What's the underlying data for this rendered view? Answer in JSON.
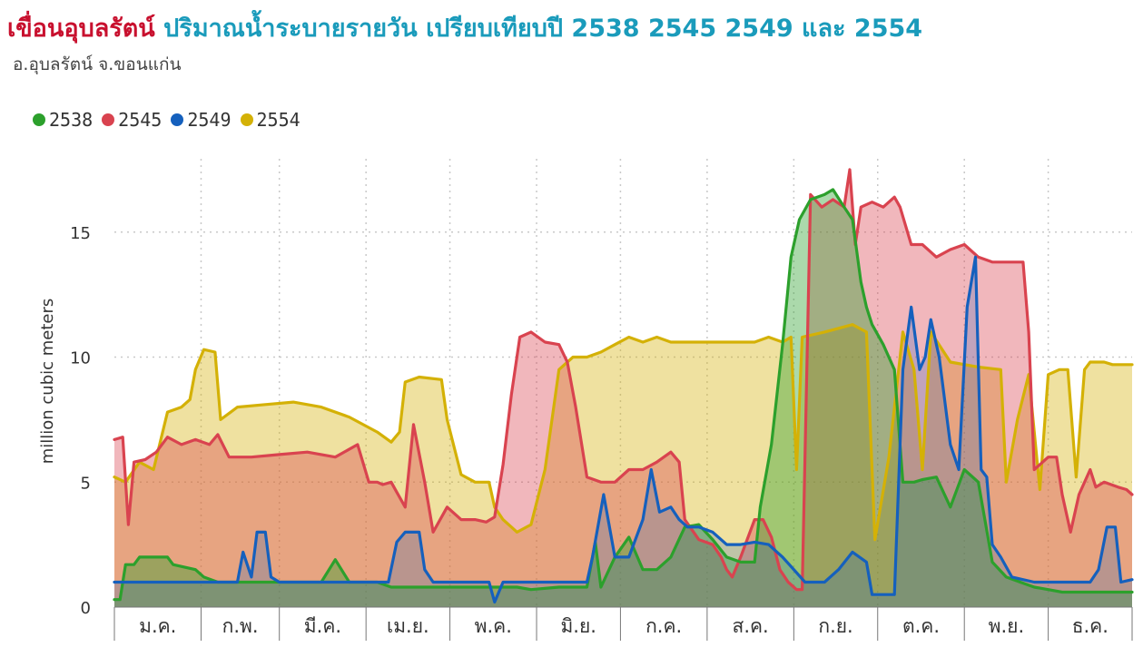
{
  "header": {
    "title_dam": "เขื่อนอุบลรัตน์",
    "title_rest": "ปริมาณน้ำระบายรายวัน เปรียบเทียบปี 2538 2545 2549 และ 2554",
    "subtitle": "อ.อุบลรัตน์ จ.ขอนแก่น"
  },
  "colors": {
    "2538": "#2ca02c",
    "2545": "#d9434f",
    "2549": "#1560bd",
    "2554": "#d4b106"
  },
  "chart_data": {
    "type": "area",
    "title": "ปริมาณน้ำระบายรายวัน เปรียบเทียบปี 2538 2545 2549 และ 2554",
    "xlabel": "",
    "ylabel": "million cubic meters",
    "ylim": [
      0,
      18
    ],
    "yticks": [
      "0",
      "5",
      "10",
      "15"
    ],
    "grid": true,
    "legend_position": "top-left",
    "months": [
      "ม.ค.",
      "ก.พ.",
      "มี.ค.",
      "เม.ย.",
      "พ.ค.",
      "มิ.ย.",
      "ก.ค.",
      "ส.ค.",
      "ก.ย.",
      "ต.ค.",
      "พ.ย.",
      "ธ.ค."
    ],
    "x_unit": "day of year",
    "series": [
      {
        "name": "2554",
        "points": [
          [
            1,
            5.2
          ],
          [
            5,
            5.0
          ],
          [
            10,
            5.8
          ],
          [
            15,
            5.5
          ],
          [
            20,
            7.8
          ],
          [
            25,
            8.0
          ],
          [
            28,
            8.3
          ],
          [
            30,
            9.5
          ],
          [
            33,
            10.3
          ],
          [
            37,
            10.2
          ],
          [
            39,
            7.5
          ],
          [
            45,
            8.0
          ],
          [
            55,
            8.1
          ],
          [
            65,
            8.2
          ],
          [
            75,
            8.0
          ],
          [
            85,
            7.6
          ],
          [
            90,
            7.3
          ],
          [
            95,
            7.0
          ],
          [
            100,
            6.6
          ],
          [
            103,
            7.0
          ],
          [
            105,
            9.0
          ],
          [
            110,
            9.2
          ],
          [
            118,
            9.1
          ],
          [
            120,
            7.5
          ],
          [
            125,
            5.3
          ],
          [
            130,
            5.0
          ],
          [
            135,
            5.0
          ],
          [
            137,
            4.0
          ],
          [
            140,
            3.5
          ],
          [
            143,
            3.2
          ],
          [
            145,
            3.0
          ],
          [
            150,
            3.3
          ],
          [
            155,
            5.5
          ],
          [
            160,
            9.5
          ],
          [
            165,
            10.0
          ],
          [
            170,
            10.0
          ],
          [
            175,
            10.2
          ],
          [
            180,
            10.5
          ],
          [
            185,
            10.8
          ],
          [
            190,
            10.6
          ],
          [
            195,
            10.8
          ],
          [
            200,
            10.6
          ],
          [
            210,
            10.6
          ],
          [
            220,
            10.6
          ],
          [
            230,
            10.6
          ],
          [
            235,
            10.8
          ],
          [
            240,
            10.6
          ],
          [
            243,
            10.8
          ],
          [
            245,
            5.5
          ],
          [
            247,
            10.8
          ],
          [
            255,
            11.0
          ],
          [
            265,
            11.3
          ],
          [
            270,
            11.0
          ],
          [
            273,
            2.7
          ],
          [
            278,
            6.0
          ],
          [
            283,
            11.0
          ],
          [
            287,
            9.5
          ],
          [
            290,
            5.5
          ],
          [
            293,
            11.0
          ],
          [
            300,
            9.8
          ],
          [
            310,
            9.6
          ],
          [
            318,
            9.5
          ],
          [
            320,
            5.0
          ],
          [
            324,
            7.5
          ],
          [
            328,
            9.3
          ],
          [
            332,
            4.7
          ],
          [
            335,
            9.3
          ],
          [
            339,
            9.5
          ],
          [
            342,
            9.5
          ],
          [
            345,
            5.2
          ],
          [
            348,
            9.5
          ],
          [
            350,
            9.8
          ],
          [
            355,
            9.8
          ],
          [
            358,
            9.7
          ],
          [
            365,
            9.7
          ]
        ]
      },
      {
        "name": "2545",
        "points": [
          [
            1,
            6.7
          ],
          [
            4,
            6.8
          ],
          [
            6,
            3.3
          ],
          [
            8,
            5.8
          ],
          [
            12,
            5.9
          ],
          [
            16,
            6.2
          ],
          [
            20,
            6.8
          ],
          [
            25,
            6.5
          ],
          [
            30,
            6.7
          ],
          [
            35,
            6.5
          ],
          [
            38,
            6.9
          ],
          [
            42,
            6.0
          ],
          [
            50,
            6.0
          ],
          [
            60,
            6.1
          ],
          [
            70,
            6.2
          ],
          [
            80,
            6.0
          ],
          [
            88,
            6.5
          ],
          [
            92,
            5.0
          ],
          [
            95,
            5.0
          ],
          [
            97,
            4.9
          ],
          [
            100,
            5.0
          ],
          [
            102,
            4.6
          ],
          [
            105,
            4.0
          ],
          [
            108,
            7.3
          ],
          [
            112,
            5.0
          ],
          [
            115,
            3.0
          ],
          [
            120,
            4.0
          ],
          [
            125,
            3.5
          ],
          [
            130,
            3.5
          ],
          [
            134,
            3.4
          ],
          [
            137,
            3.6
          ],
          [
            140,
            5.7
          ],
          [
            143,
            8.5
          ],
          [
            146,
            10.8
          ],
          [
            150,
            11.0
          ],
          [
            155,
            10.6
          ],
          [
            160,
            10.5
          ],
          [
            163,
            9.8
          ],
          [
            166,
            8.0
          ],
          [
            170,
            5.2
          ],
          [
            175,
            5.0
          ],
          [
            180,
            5.0
          ],
          [
            185,
            5.5
          ],
          [
            190,
            5.5
          ],
          [
            195,
            5.8
          ],
          [
            200,
            6.2
          ],
          [
            203,
            5.8
          ],
          [
            205,
            3.5
          ],
          [
            210,
            2.7
          ],
          [
            215,
            2.5
          ],
          [
            218,
            2.0
          ],
          [
            220,
            1.5
          ],
          [
            222,
            1.2
          ],
          [
            225,
            2.0
          ],
          [
            230,
            3.5
          ],
          [
            233,
            3.5
          ],
          [
            236,
            2.8
          ],
          [
            239,
            1.5
          ],
          [
            242,
            1.0
          ],
          [
            245,
            0.7
          ],
          [
            247,
            0.7
          ],
          [
            250,
            16.5
          ],
          [
            254,
            16.0
          ],
          [
            258,
            16.3
          ],
          [
            262,
            16.0
          ],
          [
            264,
            17.5
          ],
          [
            266,
            14.5
          ],
          [
            268,
            16.0
          ],
          [
            272,
            16.2
          ],
          [
            276,
            16.0
          ],
          [
            280,
            16.4
          ],
          [
            282,
            16.0
          ],
          [
            286,
            14.5
          ],
          [
            290,
            14.5
          ],
          [
            295,
            14.0
          ],
          [
            300,
            14.3
          ],
          [
            305,
            14.5
          ],
          [
            310,
            14.0
          ],
          [
            315,
            13.8
          ],
          [
            320,
            13.8
          ],
          [
            326,
            13.8
          ],
          [
            328,
            11.0
          ],
          [
            330,
            5.5
          ],
          [
            335,
            6.0
          ],
          [
            338,
            6.0
          ],
          [
            340,
            4.5
          ],
          [
            343,
            3.0
          ],
          [
            346,
            4.5
          ],
          [
            350,
            5.5
          ],
          [
            352,
            4.8
          ],
          [
            355,
            5.0
          ],
          [
            360,
            4.8
          ],
          [
            363,
            4.7
          ],
          [
            365,
            4.5
          ]
        ]
      },
      {
        "name": "2538",
        "points": [
          [
            1,
            0.3
          ],
          [
            3,
            0.3
          ],
          [
            5,
            1.7
          ],
          [
            8,
            1.7
          ],
          [
            10,
            2.0
          ],
          [
            15,
            2.0
          ],
          [
            20,
            2.0
          ],
          [
            22,
            1.7
          ],
          [
            26,
            1.6
          ],
          [
            30,
            1.5
          ],
          [
            33,
            1.2
          ],
          [
            38,
            1.0
          ],
          [
            45,
            1.0
          ],
          [
            55,
            1.0
          ],
          [
            65,
            1.0
          ],
          [
            75,
            1.0
          ],
          [
            80,
            1.9
          ],
          [
            85,
            1.0
          ],
          [
            95,
            1.0
          ],
          [
            100,
            0.8
          ],
          [
            105,
            0.8
          ],
          [
            115,
            0.8
          ],
          [
            125,
            0.8
          ],
          [
            135,
            0.8
          ],
          [
            140,
            0.8
          ],
          [
            145,
            0.8
          ],
          [
            150,
            0.7
          ],
          [
            160,
            0.8
          ],
          [
            170,
            0.8
          ],
          [
            173,
            2.6
          ],
          [
            175,
            0.8
          ],
          [
            180,
            2.0
          ],
          [
            185,
            2.8
          ],
          [
            190,
            1.5
          ],
          [
            195,
            1.5
          ],
          [
            200,
            2.0
          ],
          [
            205,
            3.2
          ],
          [
            210,
            3.3
          ],
          [
            215,
            2.7
          ],
          [
            220,
            2.0
          ],
          [
            225,
            1.8
          ],
          [
            230,
            1.8
          ],
          [
            232,
            4.0
          ],
          [
            236,
            6.5
          ],
          [
            240,
            10.5
          ],
          [
            243,
            14.0
          ],
          [
            246,
            15.5
          ],
          [
            250,
            16.3
          ],
          [
            255,
            16.5
          ],
          [
            258,
            16.7
          ],
          [
            262,
            16.0
          ],
          [
            265,
            15.5
          ],
          [
            268,
            13.0
          ],
          [
            270,
            12.0
          ],
          [
            272,
            11.3
          ],
          [
            276,
            10.5
          ],
          [
            280,
            9.5
          ],
          [
            283,
            5.0
          ],
          [
            287,
            5.0
          ],
          [
            290,
            5.1
          ],
          [
            295,
            5.2
          ],
          [
            300,
            4.0
          ],
          [
            305,
            5.5
          ],
          [
            310,
            5.0
          ],
          [
            315,
            1.8
          ],
          [
            320,
            1.2
          ],
          [
            325,
            1.0
          ],
          [
            330,
            0.8
          ],
          [
            335,
            0.7
          ],
          [
            340,
            0.6
          ],
          [
            345,
            0.6
          ],
          [
            350,
            0.6
          ],
          [
            355,
            0.6
          ],
          [
            360,
            0.6
          ],
          [
            365,
            0.6
          ]
        ]
      },
      {
        "name": "2549",
        "points": [
          [
            1,
            1.0
          ],
          [
            10,
            1.0
          ],
          [
            20,
            1.0
          ],
          [
            30,
            1.0
          ],
          [
            40,
            1.0
          ],
          [
            45,
            1.0
          ],
          [
            47,
            2.2
          ],
          [
            50,
            1.2
          ],
          [
            52,
            3.0
          ],
          [
            55,
            3.0
          ],
          [
            57,
            1.2
          ],
          [
            60,
            1.0
          ],
          [
            70,
            1.0
          ],
          [
            80,
            1.0
          ],
          [
            90,
            1.0
          ],
          [
            99,
            1.0
          ],
          [
            102,
            2.6
          ],
          [
            105,
            3.0
          ],
          [
            110,
            3.0
          ],
          [
            112,
            1.5
          ],
          [
            115,
            1.0
          ],
          [
            120,
            1.0
          ],
          [
            130,
            1.0
          ],
          [
            135,
            1.0
          ],
          [
            137,
            0.2
          ],
          [
            140,
            1.0
          ],
          [
            150,
            1.0
          ],
          [
            160,
            1.0
          ],
          [
            170,
            1.0
          ],
          [
            172,
            2.0
          ],
          [
            176,
            4.5
          ],
          [
            180,
            2.0
          ],
          [
            185,
            2.0
          ],
          [
            190,
            3.5
          ],
          [
            193,
            5.5
          ],
          [
            196,
            3.8
          ],
          [
            200,
            4.0
          ],
          [
            203,
            3.5
          ],
          [
            206,
            3.2
          ],
          [
            210,
            3.2
          ],
          [
            215,
            3.0
          ],
          [
            220,
            2.5
          ],
          [
            225,
            2.5
          ],
          [
            230,
            2.6
          ],
          [
            235,
            2.5
          ],
          [
            240,
            2.0
          ],
          [
            244,
            1.5
          ],
          [
            248,
            1.0
          ],
          [
            255,
            1.0
          ],
          [
            260,
            1.5
          ],
          [
            265,
            2.2
          ],
          [
            270,
            1.8
          ],
          [
            272,
            0.5
          ],
          [
            276,
            0.5
          ],
          [
            280,
            0.5
          ],
          [
            283,
            9.5
          ],
          [
            286,
            12.0
          ],
          [
            289,
            9.5
          ],
          [
            291,
            10.0
          ],
          [
            293,
            11.5
          ],
          [
            296,
            10.0
          ],
          [
            300,
            6.5
          ],
          [
            303,
            5.5
          ],
          [
            306,
            12.0
          ],
          [
            309,
            14.0
          ],
          [
            311,
            5.5
          ],
          [
            313,
            5.2
          ],
          [
            315,
            2.5
          ],
          [
            318,
            2.0
          ],
          [
            322,
            1.2
          ],
          [
            330,
            1.0
          ],
          [
            340,
            1.0
          ],
          [
            350,
            1.0
          ],
          [
            353,
            1.5
          ],
          [
            356,
            3.2
          ],
          [
            359,
            3.2
          ],
          [
            361,
            1.0
          ],
          [
            365,
            1.1
          ]
        ]
      }
    ]
  }
}
